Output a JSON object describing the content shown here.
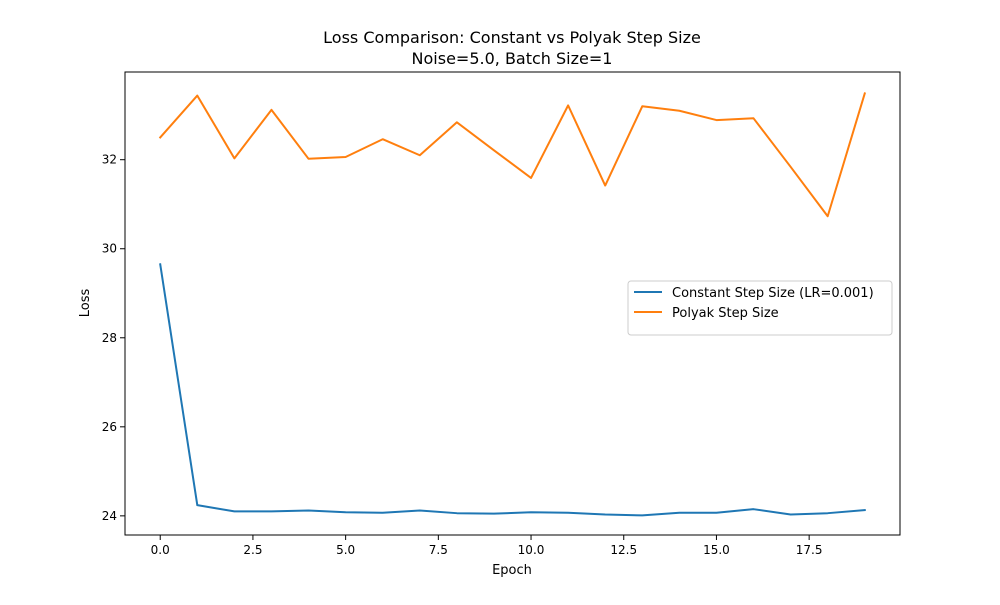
{
  "chart_data": {
    "type": "line",
    "title_line1": "Loss Comparison: Constant vs Polyak Step Size",
    "title_line2": "Noise=5.0, Batch Size=1",
    "xlabel": "Epoch",
    "ylabel": "Loss",
    "xlim": [
      -0.95,
      19.95
    ],
    "ylim": [
      23.57,
      33.97
    ],
    "xticks": [
      0.0,
      2.5,
      5.0,
      7.5,
      10.0,
      12.5,
      15.0,
      17.5
    ],
    "xtick_labels": [
      "0.0",
      "2.5",
      "5.0",
      "7.5",
      "10.0",
      "12.5",
      "15.0",
      "17.5"
    ],
    "yticks": [
      24,
      26,
      28,
      30,
      32
    ],
    "ytick_labels": [
      "24",
      "26",
      "28",
      "30",
      "32"
    ],
    "grid": false,
    "legend_position": "center-right",
    "x": [
      0,
      1,
      2,
      3,
      4,
      5,
      6,
      7,
      8,
      9,
      10,
      11,
      12,
      13,
      14,
      15,
      16,
      17,
      18,
      19
    ],
    "series": [
      {
        "name": "Constant Step Size (LR=0.001)",
        "color": "#1f77b4",
        "values": [
          29.65,
          24.24,
          24.1,
          24.1,
          24.12,
          24.08,
          24.07,
          24.12,
          24.06,
          24.05,
          24.08,
          24.07,
          24.03,
          24.01,
          24.07,
          24.07,
          24.15,
          24.03,
          24.06,
          24.13
        ]
      },
      {
        "name": "Polyak Step Size",
        "color": "#ff7f0e",
        "values": [
          32.5,
          33.44,
          32.03,
          33.12,
          32.02,
          32.06,
          32.46,
          32.1,
          32.84,
          32.21,
          31.59,
          33.22,
          31.42,
          33.2,
          33.1,
          32.89,
          32.93,
          31.84,
          30.73,
          33.49
        ]
      }
    ]
  }
}
